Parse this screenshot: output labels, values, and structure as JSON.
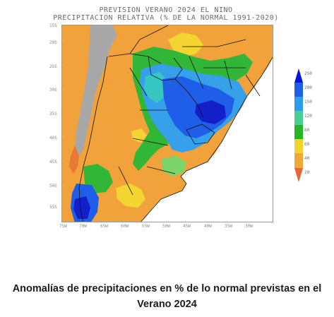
{
  "map": {
    "title_line1": "PREVISION VERANO 2024 EL NINO",
    "title_line2": "PRECIPITACION RELATIVA (% DE LA NORMAL 1991-2020)",
    "lat_labels": [
      "15S",
      "20S",
      "25S",
      "30S",
      "35S",
      "40S",
      "45S",
      "50S",
      "55S"
    ],
    "lon_labels": [
      "75W",
      "70W",
      "65W",
      "60W",
      "55W",
      "50W",
      "45W",
      "40W",
      "35W",
      "30W"
    ],
    "legend": {
      "labels": [
        "250",
        "200",
        "150",
        "120",
        "80",
        "60",
        "40",
        "20"
      ],
      "colors": [
        "#0a14d8",
        "#1f5ee8",
        "#2e9ce8",
        "#49cf8f",
        "#29b52a",
        "#f2d32c",
        "#f0a935",
        "#e8643a"
      ]
    },
    "colors": {
      "orange": "#f2a23a",
      "dark_orange": "#e77a35",
      "yellow": "#f3d431",
      "green": "#32b637",
      "light_green": "#7bd46a",
      "cyan": "#38c6c2",
      "light_blue": "#36a0ea",
      "blue": "#1e5ee8",
      "dark_blue": "#1320c9",
      "gray_andes": "#a8a8a8"
    }
  },
  "caption": {
    "text": "Anomalías de precipitaciones en % de lo normal previstas en el Verano 2024"
  }
}
